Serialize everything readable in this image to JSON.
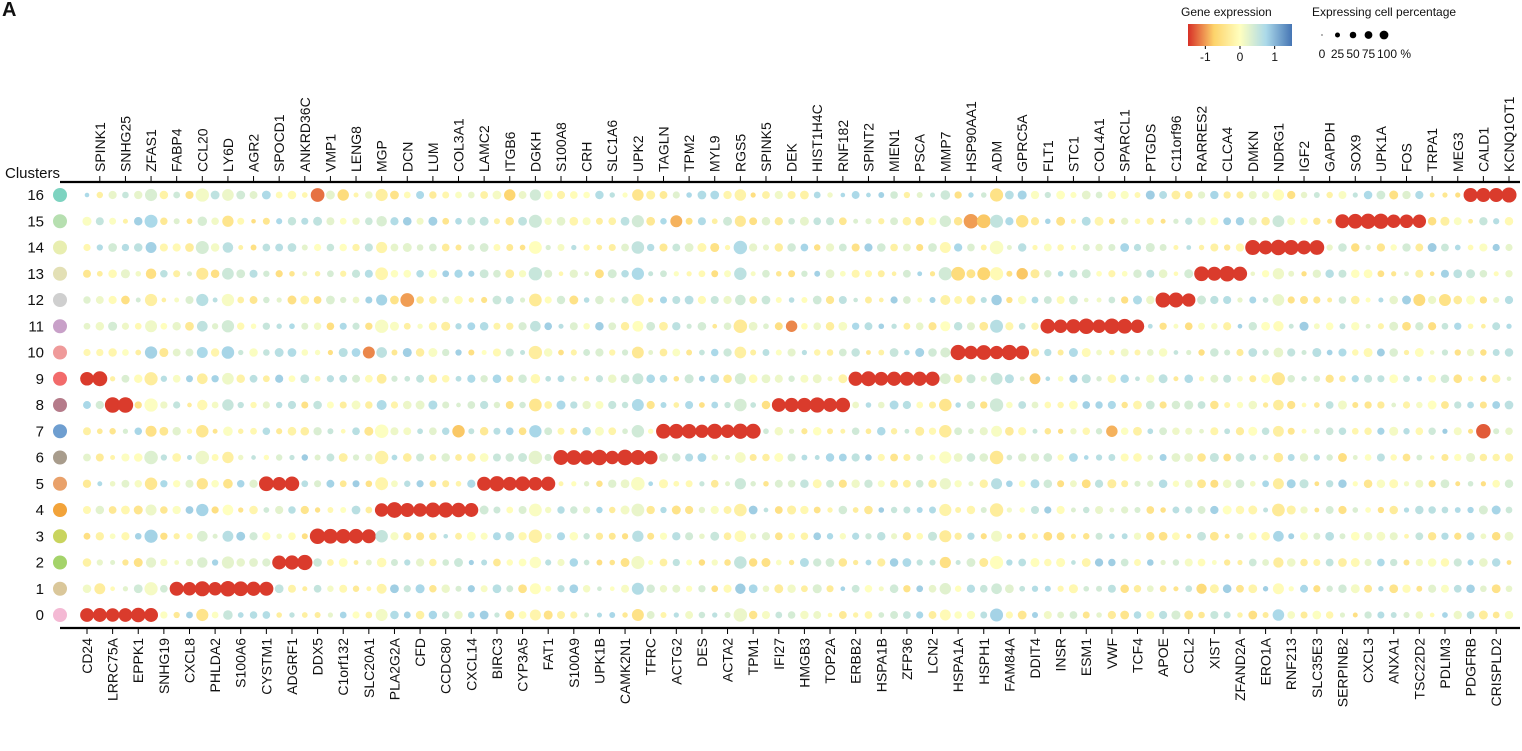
{
  "panel_label": "A",
  "chart_data": {
    "type": "dotplot",
    "title": "",
    "ylabel": "Clusters",
    "clusters": [
      "16",
      "15",
      "14",
      "13",
      "12",
      "11",
      "10",
      "9",
      "8",
      "7",
      "6",
      "5",
      "4",
      "3",
      "2",
      "1",
      "0"
    ],
    "cluster_colors": [
      "#7dd3c0",
      "#b6dfb0",
      "#e8eeb0",
      "#e3e0b5",
      "#cfcfcf",
      "#c8a0c8",
      "#ef9a9a",
      "#f26b6b",
      "#b57b8a",
      "#6e9ed0",
      "#a89c8c",
      "#e9a16a",
      "#f2a33a",
      "#c9d45e",
      "#a4d36a",
      "#dac79a",
      "#f4b9d4"
    ],
    "genes_top": [
      "SPINK1",
      "SNHG25",
      "ZFAS1",
      "FABP4",
      "CCL20",
      "LY6D",
      "AGR2",
      "SPOCD1",
      "ANKRD36C",
      "VMP1",
      "LENG8",
      "MGP",
      "DCN",
      "LUM",
      "COL3A1",
      "LAMC2",
      "ITGB6",
      "DGKH",
      "S100A8",
      "CRH",
      "SLC1A6",
      "UPK2",
      "TAGLN",
      "TPM2",
      "MYL9",
      "RGS5",
      "SPINK5",
      "DEK",
      "HIST1H4C",
      "RNF182",
      "SPINT2",
      "MIEN1",
      "PSCA",
      "MMP7",
      "HSP90AA1",
      "ADM",
      "GPRC5A",
      "FLT1",
      "STC1",
      "COL4A1",
      "SPARCL1",
      "PTGDS",
      "C11orf96",
      "RARRES2",
      "CLCA4",
      "DMKN",
      "NDRG1",
      "IGF2",
      "GAPDH",
      "SOX9",
      "UPK1A",
      "FOS",
      "TRPA1",
      "MEG3",
      "CALD1",
      "KCNQ1OT1"
    ],
    "genes_bottom": [
      "CD24",
      "LRRC75A",
      "EPPK1",
      "SNHG19",
      "CXCL8",
      "PHLDA2",
      "S100A6",
      "CYSTM1",
      "ADGRF1",
      "DDX5",
      "C1orf132",
      "SLC20A1",
      "PLA2G2A",
      "CFD",
      "CCDC80",
      "CXCL14",
      "BIRC3",
      "CYP3A5",
      "FAT1",
      "S100A9",
      "UPK1B",
      "CAMK2N1",
      "TFRC",
      "ACTG2",
      "DES",
      "ACTA2",
      "TPM1",
      "IFI27",
      "HMGB3",
      "TOP2A",
      "ERBB2",
      "HSPA1B",
      "ZFP36",
      "LCN2",
      "HSPA1A",
      "HSPH1",
      "FAM84A",
      "DDIT4",
      "INSR",
      "ESM1",
      "VWF",
      "TCF4",
      "APOE",
      "CCL2",
      "XIST",
      "ZFAND2A",
      "ERO1A",
      "RNF213",
      "SLC35E3",
      "SERPINB2",
      "CXCL3",
      "ANXA1",
      "TSC22D2",
      "PDLIM3",
      "PDGFRB",
      "CRISPLD2"
    ],
    "marker_blocks": [
      {
        "cluster": "16",
        "start": 108,
        "end": 111
      },
      {
        "cluster": "15",
        "start": 98,
        "end": 104
      },
      {
        "cluster": "14",
        "start": 91,
        "end": 96
      },
      {
        "cluster": "13",
        "start": 87,
        "end": 90
      },
      {
        "cluster": "12",
        "start": 84,
        "end": 86
      },
      {
        "cluster": "11",
        "start": 75,
        "end": 82
      },
      {
        "cluster": "10",
        "start": 68,
        "end": 73
      },
      {
        "cluster": "9",
        "start": 0,
        "end": 1
      },
      {
        "cluster": "9",
        "start": 60,
        "end": 66
      },
      {
        "cluster": "8",
        "start": 2,
        "end": 3
      },
      {
        "cluster": "8",
        "start": 54,
        "end": 59
      },
      {
        "cluster": "7",
        "start": 45,
        "end": 52
      },
      {
        "cluster": "6",
        "start": 37,
        "end": 44
      },
      {
        "cluster": "5",
        "start": 14,
        "end": 16
      },
      {
        "cluster": "5",
        "start": 31,
        "end": 36
      },
      {
        "cluster": "4",
        "start": 23,
        "end": 30
      },
      {
        "cluster": "3",
        "start": 18,
        "end": 22
      },
      {
        "cluster": "2",
        "start": 15,
        "end": 17
      },
      {
        "cluster": "1",
        "start": 7,
        "end": 14
      },
      {
        "cluster": "0",
        "start": 0,
        "end": 5
      }
    ],
    "extra_dots": [
      {
        "cluster": "16",
        "gene_index": 18,
        "pct": 70,
        "expr": -1.2
      },
      {
        "cluster": "16",
        "gene_index": 20,
        "pct": 45,
        "expr": -0.6
      },
      {
        "cluster": "16",
        "gene_index": 33,
        "pct": 45,
        "expr": -0.7
      },
      {
        "cluster": "15",
        "gene_index": 69,
        "pct": 80,
        "expr": -1.0
      },
      {
        "cluster": "15",
        "gene_index": 46,
        "pct": 50,
        "expr": -0.9
      },
      {
        "cluster": "15",
        "gene_index": 70,
        "pct": 70,
        "expr": -0.8
      },
      {
        "cluster": "15",
        "gene_index": 73,
        "pct": 55,
        "expr": -0.5
      },
      {
        "cluster": "13",
        "gene_index": 70,
        "pct": 60,
        "expr": -0.7
      },
      {
        "cluster": "13",
        "gene_index": 73,
        "pct": 45,
        "expr": -0.8
      },
      {
        "cluster": "13",
        "gene_index": 68,
        "pct": 70,
        "expr": -0.6
      },
      {
        "cluster": "12",
        "gene_index": 25,
        "pct": 70,
        "expr": -1.0
      },
      {
        "cluster": "12",
        "gene_index": 104,
        "pct": 50,
        "expr": -0.6
      },
      {
        "cluster": "12",
        "gene_index": 106,
        "pct": 50,
        "expr": -0.5
      },
      {
        "cluster": "11",
        "gene_index": 55,
        "pct": 45,
        "expr": -1.1
      },
      {
        "cluster": "10",
        "gene_index": 22,
        "pct": 50,
        "expr": -1.1
      },
      {
        "cluster": "9",
        "gene_index": 74,
        "pct": 40,
        "expr": -0.8
      },
      {
        "cluster": "7",
        "gene_index": 29,
        "pct": 55,
        "expr": -0.8
      },
      {
        "cluster": "7",
        "gene_index": 80,
        "pct": 45,
        "expr": -0.9
      },
      {
        "cluster": "7",
        "gene_index": 109,
        "pct": 80,
        "expr": -1.3
      },
      {
        "cluster": "5",
        "gene_index": 93,
        "pct": 40,
        "expr": -0.3
      },
      {
        "cluster": "2",
        "gene_index": 93,
        "pct": 35,
        "expr": -0.3
      },
      {
        "cluster": "1",
        "gene_index": 87,
        "pct": 35,
        "expr": -0.6
      },
      {
        "cluster": "1",
        "gene_index": 1,
        "pct": 40,
        "expr": -0.3
      }
    ],
    "size_legend": {
      "title": "Expressing cell percentage",
      "values": [
        0,
        25,
        50,
        75,
        100
      ],
      "labels": [
        "0",
        "25",
        "50",
        "75",
        "100 %"
      ]
    },
    "color_legend": {
      "title": "Gene expression",
      "ticks": [
        -1,
        0,
        1
      ],
      "tick_labels": [
        "-1",
        "0",
        "1"
      ],
      "colors": [
        "#d73027",
        "#fdd36b",
        "#ffffbf",
        "#abd9e9",
        "#4575b4"
      ],
      "range": [
        -1.5,
        1.5
      ]
    }
  }
}
